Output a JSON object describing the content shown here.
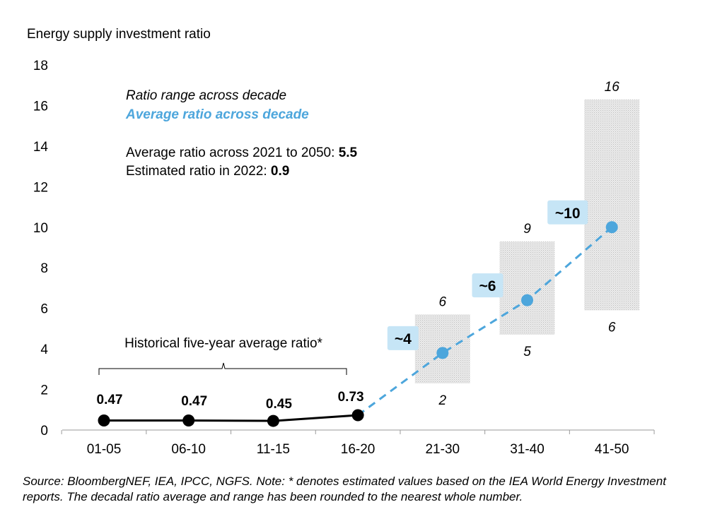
{
  "chart_data": {
    "type": "line",
    "ylabel": "Energy supply investment ratio",
    "ylim": [
      0,
      18
    ],
    "yticks": [
      0,
      2,
      4,
      6,
      8,
      10,
      12,
      14,
      16,
      18
    ],
    "categories": [
      "01-05",
      "06-10",
      "11-15",
      "16-20",
      "21-30",
      "31-40",
      "41-50"
    ],
    "historical": {
      "label": "Historical five-year average ratio*",
      "categories": [
        "01-05",
        "06-10",
        "11-15",
        "16-20"
      ],
      "values": [
        0.47,
        0.47,
        0.45,
        0.73
      ],
      "value_labels": [
        "0.47",
        "0.47",
        "0.45",
        "0.73"
      ],
      "color": "#000000"
    },
    "average": {
      "name": "Average ratio across decade",
      "categories": [
        "21-30",
        "31-40",
        "41-50"
      ],
      "values": [
        3.8,
        6.4,
        10
      ],
      "value_labels": [
        "~4",
        "~6",
        "~10"
      ],
      "color": "#4da6dc",
      "label_bg": "#c6e5f6"
    },
    "range": {
      "name": "Ratio range across decade",
      "categories": [
        "21-30",
        "31-40",
        "41-50"
      ],
      "low": [
        2.3,
        4.7,
        5.9
      ],
      "high": [
        5.7,
        9.3,
        16.3
      ],
      "low_labels": [
        "2",
        "5",
        "6"
      ],
      "high_labels": [
        "6",
        "9",
        "16"
      ],
      "color": "#d9d9d9"
    },
    "legend": {
      "range_label": "Ratio range across decade",
      "average_label": "Average ratio across decade",
      "stat1_text": "Average ratio across 2021 to 2050: ",
      "stat1_value": "5.5",
      "stat2_text": "Estimated ratio in 2022: ",
      "stat2_value": "0.9"
    }
  },
  "source_note": "Source: BloombergNEF, IEA, IPCC, NGFS. Note: * denotes estimated values based on the IEA World Energy Investment reports. The decadal ratio average and range has been rounded to the nearest whole number."
}
